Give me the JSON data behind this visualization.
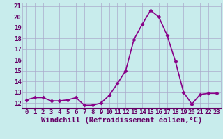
{
  "xlabel": "Windchill (Refroidissement éolien,°C)",
  "x": [
    0,
    1,
    2,
    3,
    4,
    5,
    6,
    7,
    8,
    9,
    10,
    11,
    12,
    13,
    14,
    15,
    16,
    17,
    18,
    19,
    20,
    21,
    22,
    23
  ],
  "y": [
    12.3,
    12.5,
    12.5,
    12.2,
    12.2,
    12.3,
    12.5,
    11.8,
    11.8,
    12.0,
    12.7,
    13.8,
    15.0,
    17.9,
    19.3,
    20.6,
    20.0,
    18.3,
    15.9,
    13.0,
    11.9,
    12.8,
    12.9,
    12.9
  ],
  "line_color": "#880088",
  "marker": "D",
  "marker_size": 2.5,
  "bg_color": "#c8ecec",
  "grid_color": "#aaaacc",
  "ylim": [
    11.5,
    21.3
  ],
  "yticks": [
    12,
    13,
    14,
    15,
    16,
    17,
    18,
    19,
    20,
    21
  ],
  "xlim": [
    -0.5,
    23.5
  ],
  "xticks": [
    0,
    1,
    2,
    3,
    4,
    5,
    6,
    7,
    8,
    9,
    10,
    11,
    12,
    13,
    14,
    15,
    16,
    17,
    18,
    19,
    20,
    21,
    22,
    23
  ],
  "label_color": "#660066",
  "tick_fontsize": 6.5,
  "xlabel_fontsize": 7.5,
  "linewidth": 1.2
}
